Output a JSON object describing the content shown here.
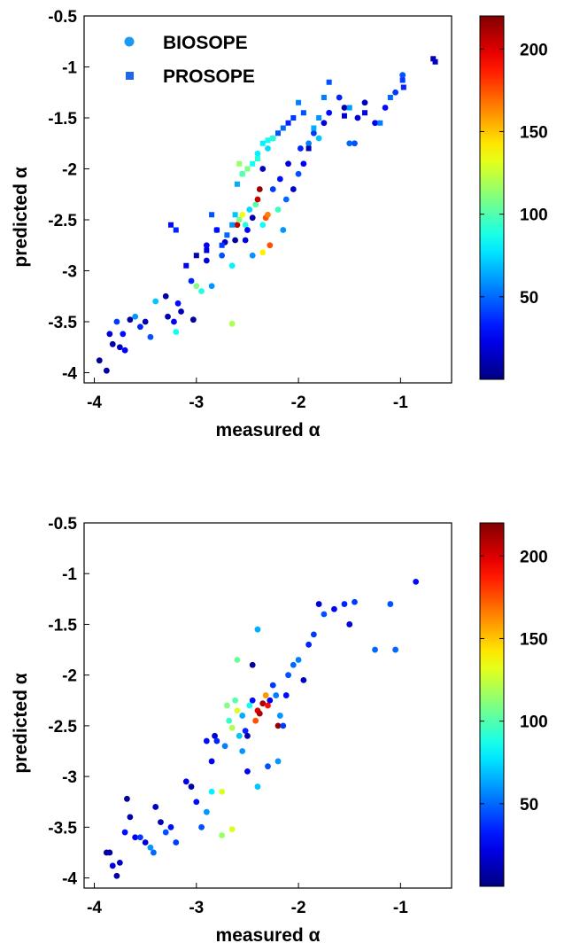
{
  "chart_data": [
    {
      "type": "scatter",
      "xlabel": "measured α",
      "ylabel": "predicted α",
      "xlim": [
        -4.1,
        -0.5
      ],
      "ylim": [
        -4.1,
        -0.5
      ],
      "xticks": [
        "-4",
        "-3",
        "-2",
        "-1"
      ],
      "yticks": [
        "-0.5",
        "-1",
        "-1.5",
        "-2",
        "-2.5",
        "-3",
        "-3.5",
        "-4"
      ],
      "colorbar": {
        "range": [
          0,
          220
        ],
        "ticks": [
          "50",
          "100",
          "150",
          "200"
        ]
      },
      "legend": {
        "placement": "top-left",
        "entries": [
          {
            "label": "BIOSOPE",
            "marker": "circle",
            "color": "#1a9bf0"
          },
          {
            "label": "PROSOPE",
            "marker": "square",
            "color": "#1f66e8"
          }
        ]
      },
      "series": [
        {
          "name": "BIOSOPE",
          "marker": "circle",
          "points": [
            [
              -3.95,
              -3.88,
              5
            ],
            [
              -3.88,
              -3.98,
              8
            ],
            [
              -3.85,
              -3.62,
              20
            ],
            [
              -3.82,
              -3.72,
              10
            ],
            [
              -3.78,
              -3.5,
              40
            ],
            [
              -3.75,
              -3.75,
              15
            ],
            [
              -3.72,
              -3.62,
              30
            ],
            [
              -3.7,
              -3.78,
              25
            ],
            [
              -3.65,
              -3.48,
              5
            ],
            [
              -3.6,
              -3.45,
              60
            ],
            [
              -3.55,
              -3.55,
              35
            ],
            [
              -3.5,
              -3.5,
              10
            ],
            [
              -3.45,
              -3.65,
              45
            ],
            [
              -3.4,
              -3.3,
              70
            ],
            [
              -3.3,
              -3.25,
              8
            ],
            [
              -3.28,
              -3.45,
              12
            ],
            [
              -3.22,
              -3.5,
              25
            ],
            [
              -3.2,
              -3.6,
              85
            ],
            [
              -3.18,
              -3.32,
              30
            ],
            [
              -3.15,
              -3.4,
              10
            ],
            [
              -3.05,
              -3.1,
              35
            ],
            [
              -3.03,
              -3.48,
              8
            ],
            [
              -3.0,
              -3.15,
              110
            ],
            [
              -2.95,
              -3.2,
              90
            ],
            [
              -2.9,
              -2.9,
              20
            ],
            [
              -2.85,
              -3.15,
              60
            ],
            [
              -2.75,
              -2.85,
              45
            ],
            [
              -2.72,
              -2.72,
              15
            ],
            [
              -2.65,
              -3.52,
              120
            ],
            [
              -2.62,
              -2.7,
              5
            ],
            [
              -2.6,
              -2.55,
              205
            ],
            [
              -2.58,
              -2.5,
              110
            ],
            [
              -2.55,
              -2.45,
              135
            ],
            [
              -2.52,
              -2.55,
              90
            ],
            [
              -2.5,
              -2.6,
              25
            ],
            [
              -2.48,
              -2.4,
              75
            ],
            [
              -2.45,
              -2.48,
              10
            ],
            [
              -2.42,
              -2.35,
              100
            ],
            [
              -2.4,
              -2.3,
              205
            ],
            [
              -2.38,
              -2.2,
              215
            ],
            [
              -2.35,
              -2.55,
              85
            ],
            [
              -2.32,
              -2.48,
              175
            ],
            [
              -2.3,
              -2.45,
              165
            ],
            [
              -2.28,
              -2.75,
              175
            ],
            [
              -2.25,
              -2.2,
              40
            ],
            [
              -2.2,
              -2.4,
              95
            ],
            [
              -2.18,
              -2.1,
              30
            ],
            [
              -2.15,
              -2.6,
              60
            ],
            [
              -2.12,
              -2.3,
              50
            ],
            [
              -2.1,
              -1.95,
              20
            ],
            [
              -2.05,
              -2.2,
              15
            ],
            [
              -2.0,
              -2.05,
              45
            ],
            [
              -1.98,
              -1.8,
              35
            ],
            [
              -1.95,
              -1.95,
              25
            ],
            [
              -1.9,
              -1.75,
              55
            ],
            [
              -1.85,
              -1.65,
              40
            ],
            [
              -1.8,
              -1.7,
              70
            ],
            [
              -1.75,
              -1.55,
              20
            ],
            [
              -1.7,
              -1.45,
              30
            ],
            [
              -1.6,
              -1.3,
              35
            ],
            [
              -1.55,
              -1.4,
              10
            ],
            [
              -1.5,
              -1.75,
              50
            ],
            [
              -1.45,
              -1.75,
              45
            ],
            [
              -1.42,
              -1.5,
              20
            ],
            [
              -1.35,
              -1.35,
              15
            ],
            [
              -1.25,
              -1.55,
              25
            ],
            [
              -1.15,
              -1.4,
              30
            ],
            [
              -1.05,
              -1.25,
              40
            ],
            [
              -0.98,
              -1.08,
              45
            ],
            [
              -2.25,
              -1.7,
              70
            ],
            [
              -2.3,
              -1.8,
              75
            ],
            [
              -2.4,
              -1.85,
              80
            ],
            [
              -2.55,
              -2.05,
              100
            ],
            [
              -2.35,
              -2.0,
              15
            ],
            [
              -2.65,
              -2.95,
              80
            ],
            [
              -2.45,
              -2.85,
              60
            ],
            [
              -2.35,
              -2.82,
              140
            ],
            [
              -2.52,
              -2.7,
              20
            ],
            [
              -2.8,
              -2.6,
              40
            ],
            [
              -2.9,
              -2.75,
              25
            ]
          ]
        },
        {
          "name": "PROSOPE",
          "marker": "square",
          "points": [
            [
              -0.68,
              -0.92,
              10
            ],
            [
              -0.66,
              -0.95,
              15
            ],
            [
              -0.97,
              -1.2,
              35
            ],
            [
              -0.98,
              -1.13,
              40
            ],
            [
              -1.1,
              -1.3,
              50
            ],
            [
              -1.2,
              -1.55,
              55
            ],
            [
              -1.35,
              -1.45,
              25
            ],
            [
              -1.5,
              -1.4,
              60
            ],
            [
              -1.55,
              -1.48,
              15
            ],
            [
              -1.7,
              -1.15,
              45
            ],
            [
              -1.75,
              -1.3,
              55
            ],
            [
              -1.8,
              -1.5,
              60
            ],
            [
              -1.85,
              -1.6,
              65
            ],
            [
              -1.9,
              -1.8,
              10
            ],
            [
              -1.95,
              -1.45,
              45
            ],
            [
              -2.0,
              -1.35,
              55
            ],
            [
              -2.05,
              -1.5,
              40
            ],
            [
              -2.1,
              -1.55,
              35
            ],
            [
              -2.15,
              -1.6,
              50
            ],
            [
              -2.2,
              -1.65,
              45
            ],
            [
              -2.25,
              -1.7,
              90
            ],
            [
              -2.3,
              -1.72,
              85
            ],
            [
              -2.35,
              -1.75,
              80
            ],
            [
              -2.4,
              -1.9,
              90
            ],
            [
              -2.45,
              -1.95,
              85
            ],
            [
              -2.5,
              -2.0,
              110
            ],
            [
              -2.55,
              -2.05,
              100
            ],
            [
              -2.6,
              -2.15,
              65
            ],
            [
              -2.62,
              -2.45,
              70
            ],
            [
              -2.65,
              -2.55,
              60
            ],
            [
              -2.7,
              -2.65,
              50
            ],
            [
              -2.75,
              -2.75,
              40
            ],
            [
              -2.8,
              -2.6,
              30
            ],
            [
              -2.85,
              -2.45,
              45
            ],
            [
              -2.9,
              -2.8,
              20
            ],
            [
              -3.0,
              -2.85,
              10
            ],
            [
              -3.1,
              -2.95,
              25
            ],
            [
              -3.2,
              -2.6,
              35
            ],
            [
              -3.25,
              -2.55,
              30
            ],
            [
              -2.58,
              -1.95,
              115
            ]
          ]
        }
      ]
    },
    {
      "type": "scatter",
      "xlabel": "measured α",
      "ylabel": "predicted α",
      "xlim": [
        -4.1,
        -0.5
      ],
      "ylim": [
        -4.1,
        -0.5
      ],
      "xticks": [
        "-4",
        "-3",
        "-2",
        "-1"
      ],
      "yticks": [
        "-0.5",
        "-1",
        "-1.5",
        "-2",
        "-2.5",
        "-3",
        "-3.5",
        "-4"
      ],
      "colorbar": {
        "range": [
          0,
          220
        ],
        "ticks": [
          "50",
          "100",
          "150",
          "200"
        ]
      },
      "series": [
        {
          "marker": "circle",
          "points": [
            [
              -3.88,
              -3.75,
              5
            ],
            [
              -3.85,
              -3.75,
              10
            ],
            [
              -3.82,
              -3.88,
              20
            ],
            [
              -3.78,
              -3.98,
              8
            ],
            [
              -3.75,
              -3.85,
              15
            ],
            [
              -3.7,
              -3.55,
              30
            ],
            [
              -3.68,
              -3.22,
              5
            ],
            [
              -3.65,
              -3.4,
              10
            ],
            [
              -3.6,
              -3.6,
              25
            ],
            [
              -3.55,
              -3.6,
              40
            ],
            [
              -3.5,
              -3.65,
              20
            ],
            [
              -3.45,
              -3.7,
              60
            ],
            [
              -3.42,
              -3.75,
              50
            ],
            [
              -3.4,
              -3.3,
              15
            ],
            [
              -3.35,
              -3.45,
              10
            ],
            [
              -3.3,
              -3.55,
              45
            ],
            [
              -3.25,
              -3.5,
              30
            ],
            [
              -3.2,
              -3.65,
              40
            ],
            [
              -3.1,
              -3.05,
              25
            ],
            [
              -3.05,
              -3.1,
              10
            ],
            [
              -3.0,
              -3.25,
              30
            ],
            [
              -2.95,
              -3.5,
              45
            ],
            [
              -2.9,
              -3.35,
              60
            ],
            [
              -2.85,
              -3.15,
              80
            ],
            [
              -2.82,
              -2.6,
              20
            ],
            [
              -2.8,
              -2.65,
              35
            ],
            [
              -2.75,
              -3.58,
              115
            ],
            [
              -2.72,
              -2.7,
              55
            ],
            [
              -2.7,
              -2.3,
              110
            ],
            [
              -2.68,
              -2.45,
              95
            ],
            [
              -2.65,
              -2.52,
              120
            ],
            [
              -2.62,
              -2.25,
              100
            ],
            [
              -2.6,
              -2.35,
              130
            ],
            [
              -2.58,
              -2.6,
              70
            ],
            [
              -2.55,
              -2.4,
              65
            ],
            [
              -2.52,
              -2.55,
              35
            ],
            [
              -2.5,
              -2.6,
              10
            ],
            [
              -2.48,
              -2.3,
              85
            ],
            [
              -2.45,
              -2.25,
              30
            ],
            [
              -2.42,
              -2.45,
              175
            ],
            [
              -2.4,
              -2.35,
              200
            ],
            [
              -2.38,
              -2.38,
              210
            ],
            [
              -2.35,
              -2.28,
              210
            ],
            [
              -2.32,
              -2.2,
              160
            ],
            [
              -2.3,
              -2.3,
              190
            ],
            [
              -2.28,
              -2.25,
              25
            ],
            [
              -2.25,
              -2.1,
              40
            ],
            [
              -2.22,
              -2.2,
              55
            ],
            [
              -2.2,
              -2.5,
              215
            ],
            [
              -2.18,
              -2.4,
              60
            ],
            [
              -2.15,
              -2.5,
              40
            ],
            [
              -2.12,
              -2.2,
              30
            ],
            [
              -2.1,
              -2.0,
              45
            ],
            [
              -2.05,
              -1.9,
              50
            ],
            [
              -2.0,
              -1.85,
              55
            ],
            [
              -1.95,
              -2.05,
              15
            ],
            [
              -1.9,
              -1.7,
              35
            ],
            [
              -1.85,
              -1.6,
              40
            ],
            [
              -1.8,
              -1.3,
              20
            ],
            [
              -1.75,
              -1.4,
              45
            ],
            [
              -1.65,
              -1.35,
              25
            ],
            [
              -1.55,
              -1.3,
              35
            ],
            [
              -1.5,
              -1.5,
              20
            ],
            [
              -1.45,
              -1.28,
              40
            ],
            [
              -1.25,
              -1.75,
              50
            ],
            [
              -1.1,
              -1.3,
              45
            ],
            [
              -1.05,
              -1.75,
              50
            ],
            [
              -0.85,
              -1.08,
              30
            ],
            [
              -2.4,
              -1.55,
              65
            ],
            [
              -2.45,
              -1.9,
              5
            ],
            [
              -2.6,
              -1.85,
              105
            ],
            [
              -2.55,
              -2.75,
              60
            ],
            [
              -2.3,
              -2.9,
              45
            ],
            [
              -2.2,
              -2.85,
              60
            ],
            [
              -2.4,
              -3.1,
              70
            ],
            [
              -2.75,
              -3.15,
              130
            ],
            [
              -2.85,
              -2.85,
              25
            ],
            [
              -2.9,
              -2.65,
              30
            ],
            [
              -2.65,
              -3.52,
              130
            ],
            [
              -2.5,
              -2.95,
              25
            ]
          ]
        }
      ]
    }
  ]
}
